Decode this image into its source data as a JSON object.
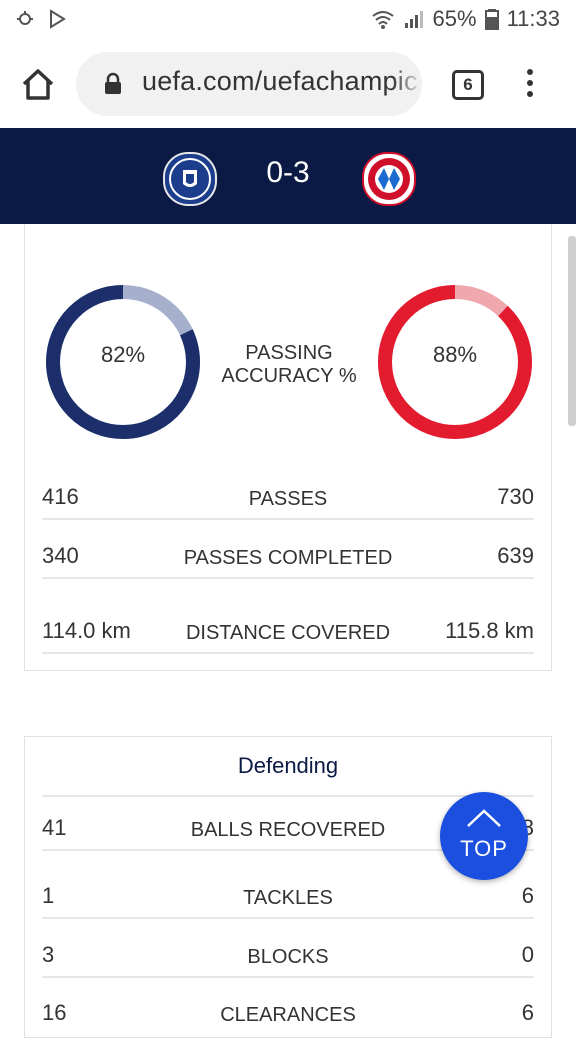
{
  "status_bar": {
    "battery": "65%",
    "time": "11:33",
    "icons": [
      "cast-icon",
      "play-store-icon",
      "wifi-icon",
      "signal-icon",
      "battery-icon"
    ]
  },
  "browser": {
    "url": "uefa.com/uefachampic",
    "tab_count": "6",
    "icons": [
      "home-icon",
      "lock-icon",
      "overflow-menu-icon"
    ]
  },
  "match": {
    "score": "0-3",
    "home_crest": "chelsea-crest",
    "away_crest": "bayern-crest",
    "home_color": "#1b3d8c",
    "away_color": "#d0102a"
  },
  "passing": {
    "label_line1": "PASSING",
    "label_line2": "ACCURACY %",
    "home_value": 82,
    "away_value": 88,
    "home_pct_text": "82%",
    "away_pct_text": "88%",
    "home_color": "#1c2f6b",
    "home_track": "#a6b0cc",
    "away_color": "#e31b2f",
    "away_track": "#f0a8af"
  },
  "stats": [
    {
      "home": "416",
      "label": "PASSES",
      "away": "730"
    },
    {
      "home": "340",
      "label": "PASSES COMPLETED",
      "away": "639"
    },
    {
      "home": "114.0 km",
      "label": "DISTANCE COVERED",
      "away": "115.8 km"
    }
  ],
  "defending": {
    "title": "Defending",
    "rows": [
      {
        "home": "41",
        "label": "BALLS RECOVERED",
        "away": "48"
      },
      {
        "home": "1",
        "label": "TACKLES",
        "away": "6"
      },
      {
        "home": "3",
        "label": "BLOCKS",
        "away": "0"
      },
      {
        "home": "16",
        "label": "CLEARANCES",
        "away": "6"
      }
    ]
  },
  "top_button": {
    "label": "TOP"
  }
}
